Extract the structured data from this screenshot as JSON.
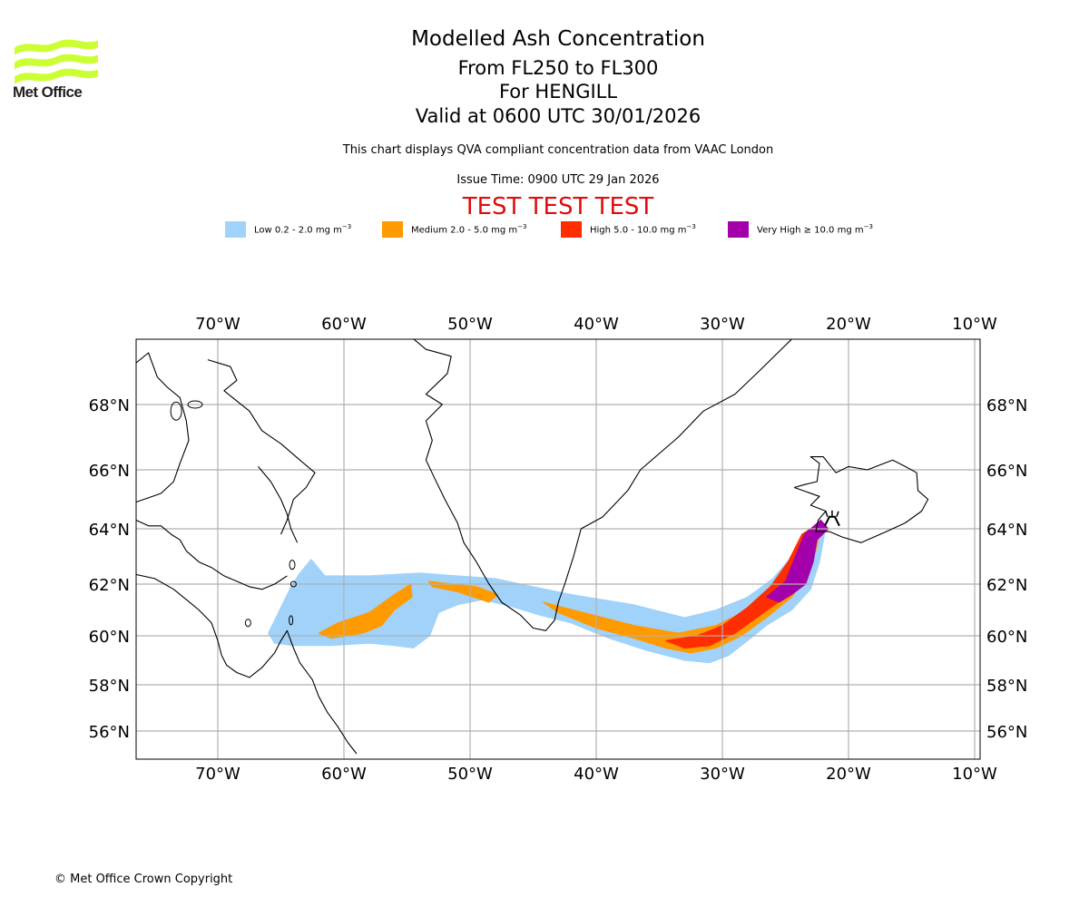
{
  "logo": {
    "name": "met-office-logo",
    "text": "Met Office",
    "color": "#ccff33"
  },
  "header": {
    "title": "Modelled Ash Concentration",
    "level_range": "From FL250 to FL300",
    "volcano": "For HENGILL",
    "valid_time": "Valid at 0600 UTC 30/01/2026",
    "description": "This chart displays QVA compliant concentration data from VAAC London",
    "issue_time": "Issue Time: 0900 UTC 29 Jan 2026",
    "test_banner": "TEST TEST TEST",
    "test_color": "#e00b0b"
  },
  "legend": [
    {
      "label": "Low 0.2 - 2.0 mg m",
      "unit_exp": "−3",
      "color": "#a0d2fa"
    },
    {
      "label": "Medium 2.0 - 5.0 mg m",
      "unit_exp": "−3",
      "color": "#ff9a00"
    },
    {
      "label": "High 5.0 - 10.0 mg m",
      "unit_exp": "−3",
      "color": "#ff2e00"
    },
    {
      "label": "Very High ≥ 10.0 mg m",
      "unit_exp": "−3",
      "color": "#a300ab"
    }
  ],
  "footer": {
    "copyright": "© Met Office Crown Copyright"
  },
  "chart_data": {
    "type": "heatmap",
    "title": "Modelled Ash Concentration",
    "projection": "lat-lon map",
    "lon_range": [
      -76.5,
      -9.5
    ],
    "lat_range": [
      55,
      69.5
    ],
    "grid": true,
    "x_ticks": [
      "70°W",
      "60°W",
      "50°W",
      "40°W",
      "30°W",
      "20°W",
      "10°W"
    ],
    "x_tick_values": [
      -70,
      -60,
      -50,
      -40,
      -30,
      -20,
      -10
    ],
    "y_ticks": [
      "68°N",
      "66°N",
      "64°N",
      "62°N",
      "60°N",
      "58°N",
      "56°N"
    ],
    "y_tick_values": [
      68,
      66,
      64,
      62,
      60,
      58,
      56
    ],
    "legend_position": "top",
    "volcano": {
      "name": "HENGILL",
      "lon": -21.3,
      "lat": 64.1
    },
    "concentration_regions": [
      {
        "level": "Low",
        "range": "0.2-2.0 mg m-3",
        "color": "#a0d2fa",
        "polygon": [
          [
            -65.6,
            60.5
          ],
          [
            -64.2,
            61.9
          ],
          [
            -63.5,
            62.4
          ],
          [
            -62.6,
            62.9
          ],
          [
            -61.5,
            62.3
          ],
          [
            -58,
            62.3
          ],
          [
            -54,
            62.4
          ],
          [
            -48,
            62.2
          ],
          [
            -45,
            61.9
          ],
          [
            -42,
            61.6
          ],
          [
            -37,
            61.2
          ],
          [
            -33,
            60.7
          ],
          [
            -30.5,
            61
          ],
          [
            -28,
            61.5
          ],
          [
            -26,
            62.2
          ],
          [
            -24.5,
            63
          ],
          [
            -23.4,
            63.8
          ],
          [
            -22.3,
            64.2
          ],
          [
            -21.9,
            63.8
          ],
          [
            -22.3,
            62.8
          ],
          [
            -23,
            61.8
          ],
          [
            -24.5,
            61
          ],
          [
            -26.5,
            60.4
          ],
          [
            -28,
            59.8
          ],
          [
            -29.5,
            59.2
          ],
          [
            -31,
            58.9
          ],
          [
            -33,
            59
          ],
          [
            -36,
            59.4
          ],
          [
            -39,
            59.9
          ],
          [
            -42,
            60.5
          ],
          [
            -44.5,
            60.8
          ],
          [
            -46.5,
            61.1
          ],
          [
            -49,
            61.4
          ],
          [
            -51,
            61.2
          ],
          [
            -52.5,
            60.9
          ],
          [
            -53.2,
            60
          ],
          [
            -54.5,
            59.5
          ],
          [
            -56,
            59.6
          ],
          [
            -58,
            59.7
          ],
          [
            -61,
            59.6
          ],
          [
            -64,
            59.6
          ],
          [
            -65.5,
            59.7
          ],
          [
            -66,
            60.1
          ]
        ]
      },
      {
        "level": "Medium",
        "range": "2.0-5.0 mg m-3",
        "color": "#ff9a00",
        "polygon": [
          [
            -62,
            60.1
          ],
          [
            -60.5,
            60.5
          ],
          [
            -58,
            60.9
          ],
          [
            -56,
            61.6
          ],
          [
            -54.7,
            62
          ],
          [
            -54.6,
            61.5
          ],
          [
            -56,
            61
          ],
          [
            -57,
            60.4
          ],
          [
            -58.5,
            60.1
          ],
          [
            -61,
            59.9
          ]
        ]
      },
      {
        "level": "Medium",
        "range": "2.0-5.0 mg m-3",
        "color": "#ff9a00",
        "polygon": [
          [
            -53.3,
            62.1
          ],
          [
            -49.5,
            61.9
          ],
          [
            -47.8,
            61.6
          ],
          [
            -48.5,
            61.3
          ],
          [
            -51,
            61.7
          ],
          [
            -53,
            61.9
          ]
        ]
      },
      {
        "level": "Medium",
        "range": "2.0-5.0 mg m-3",
        "color": "#ff9a00",
        "polygon": [
          [
            -44.2,
            61.3
          ],
          [
            -41,
            60.9
          ],
          [
            -37,
            60.4
          ],
          [
            -33.5,
            60.1
          ],
          [
            -30.5,
            60.4
          ],
          [
            -28,
            61
          ],
          [
            -26,
            61.8
          ],
          [
            -24.5,
            62.8
          ],
          [
            -23.5,
            63.8
          ],
          [
            -22.1,
            64.2
          ],
          [
            -22.6,
            63.2
          ],
          [
            -23.3,
            62.3
          ],
          [
            -24.5,
            61.5
          ],
          [
            -26.5,
            60.7
          ],
          [
            -28.5,
            60
          ],
          [
            -30.5,
            59.5
          ],
          [
            -32.5,
            59.3
          ],
          [
            -34.5,
            59.5
          ],
          [
            -37,
            59.9
          ],
          [
            -40,
            60.3
          ],
          [
            -43,
            60.9
          ]
        ]
      },
      {
        "level": "High",
        "range": "5.0-10.0 mg m-3",
        "color": "#ff2e00",
        "polygon": [
          [
            -34.5,
            59.8
          ],
          [
            -32,
            60
          ],
          [
            -30,
            60.4
          ],
          [
            -28,
            61.1
          ],
          [
            -26.2,
            61.9
          ],
          [
            -24.8,
            62.8
          ],
          [
            -23.7,
            63.8
          ],
          [
            -22.3,
            64.2
          ],
          [
            -22.9,
            63.2
          ],
          [
            -23.6,
            62.3
          ],
          [
            -25,
            61.5
          ],
          [
            -27,
            60.8
          ],
          [
            -29,
            60.1
          ],
          [
            -31,
            59.6
          ],
          [
            -33,
            59.5
          ]
        ]
      },
      {
        "level": "Very High",
        "range": ">=10.0 mg m-3",
        "color": "#a300ab",
        "polygon": [
          [
            -26.5,
            61.5
          ],
          [
            -25,
            62.1
          ],
          [
            -24.3,
            62.9
          ],
          [
            -23.5,
            63.8
          ],
          [
            -22.2,
            64.3
          ],
          [
            -21.6,
            64
          ],
          [
            -22.5,
            63.6
          ],
          [
            -22.8,
            62.8
          ],
          [
            -23.4,
            62
          ],
          [
            -24.5,
            61.6
          ],
          [
            -25.5,
            61.3
          ]
        ]
      }
    ]
  }
}
